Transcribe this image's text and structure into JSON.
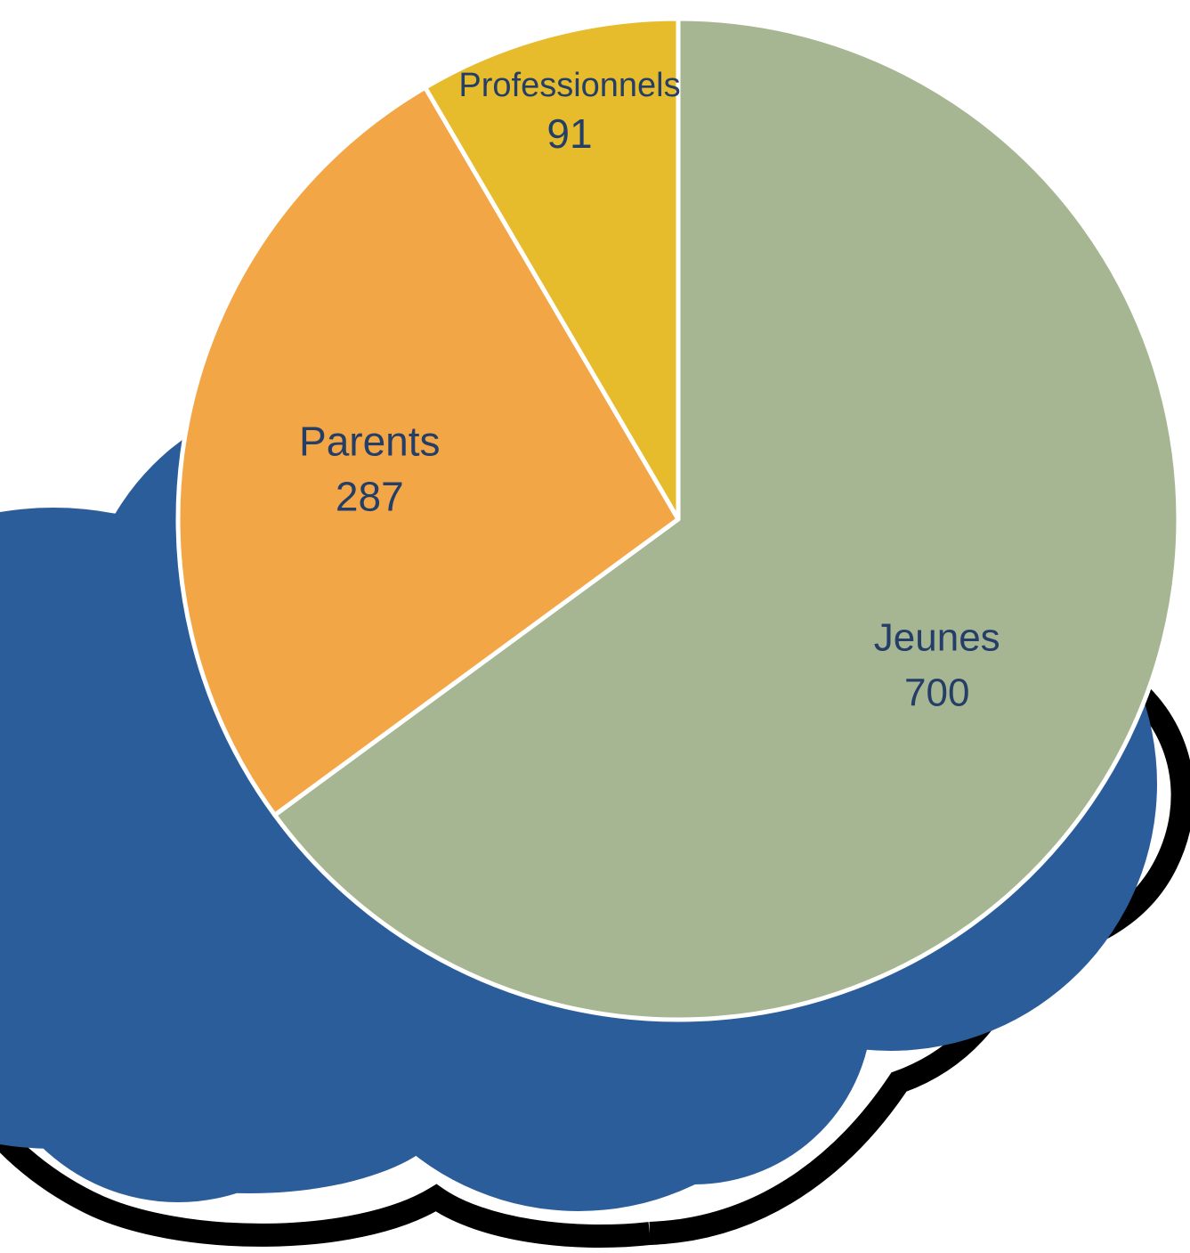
{
  "chart_data": {
    "type": "pie",
    "title": "",
    "start_angle_deg": 0,
    "direction": "clockwise",
    "slices": [
      {
        "label": "Jeunes",
        "value": 700,
        "color": "#a6b592"
      },
      {
        "label": "Parents",
        "value": 287,
        "color": "#f3a646"
      },
      {
        "label": "Professionnels",
        "value": 91,
        "color": "#e6bc2c"
      }
    ],
    "label_color": "#243e68",
    "slice_border_color": "#ffffff",
    "legend": "none"
  },
  "decoration": {
    "cloud_fill": "#2b5d9b",
    "cloud_outline": "#000000"
  }
}
